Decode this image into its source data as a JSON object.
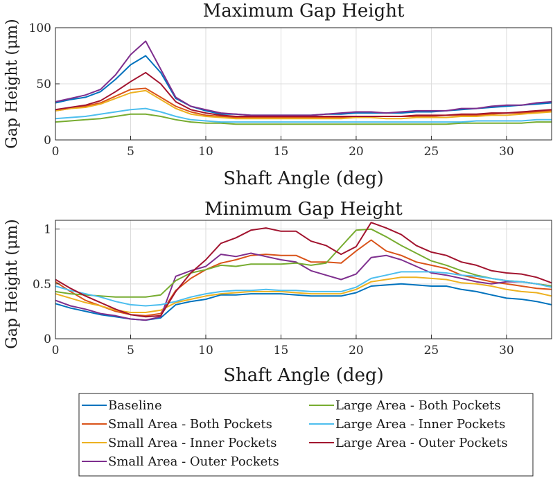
{
  "chart_data": [
    {
      "type": "line",
      "title": "Maximum Gap Height",
      "xlabel": "Shaft Angle (deg)",
      "ylabel": "Gap Height (μm)",
      "xlim": [
        0,
        33
      ],
      "ylim": [
        0,
        100
      ],
      "xticks": [
        0,
        5,
        10,
        15,
        20,
        25,
        30
      ],
      "yticks": [
        0,
        50,
        100
      ],
      "x": [
        0,
        1,
        2,
        3,
        4,
        5,
        6,
        7,
        8,
        9,
        10,
        11,
        12,
        13,
        14,
        15,
        16,
        17,
        18,
        19,
        20,
        21,
        22,
        23,
        24,
        25,
        26,
        27,
        28,
        29,
        30,
        31,
        32,
        33
      ],
      "series": [
        {
          "name": "Baseline",
          "values": [
            33,
            36,
            38,
            43,
            54,
            67,
            75,
            60,
            37,
            30,
            26,
            23,
            23,
            22,
            22,
            22,
            22,
            22,
            23,
            23,
            24,
            24,
            24,
            24,
            25,
            25,
            26,
            27,
            28,
            29,
            30,
            31,
            32,
            33
          ]
        },
        {
          "name": "Small Area - Both Pockets",
          "values": [
            26,
            28,
            30,
            33,
            39,
            45,
            46,
            38,
            30,
            25,
            22,
            21,
            20,
            20,
            20,
            20,
            20,
            20,
            20,
            20,
            21,
            21,
            21,
            21,
            21,
            21,
            22,
            22,
            22,
            23,
            24,
            24,
            25,
            26
          ]
        },
        {
          "name": "Small Area - Inner Pockets",
          "values": [
            26,
            28,
            29,
            32,
            37,
            42,
            44,
            36,
            28,
            23,
            21,
            20,
            19,
            19,
            19,
            19,
            19,
            19,
            19,
            19,
            20,
            20,
            19,
            19,
            20,
            20,
            20,
            21,
            21,
            22,
            22,
            23,
            24,
            25
          ]
        },
        {
          "name": "Small Area - Outer Pockets",
          "values": [
            34,
            37,
            40,
            45,
            58,
            76,
            88,
            63,
            38,
            30,
            27,
            24,
            23,
            22,
            22,
            22,
            22,
            22,
            23,
            24,
            25,
            25,
            24,
            25,
            26,
            26,
            26,
            28,
            28,
            30,
            31,
            31,
            33,
            34
          ]
        },
        {
          "name": "Large Area - Both Pockets",
          "values": [
            16,
            17,
            18,
            19,
            21,
            23,
            23,
            21,
            18,
            16,
            15,
            15,
            14,
            14,
            14,
            14,
            14,
            14,
            14,
            14,
            14,
            14,
            14,
            14,
            14,
            14,
            14,
            15,
            15,
            15,
            15,
            15,
            16,
            16
          ]
        },
        {
          "name": "Large Area - Inner Pockets",
          "values": [
            19,
            20,
            21,
            23,
            25,
            27,
            28,
            25,
            21,
            18,
            17,
            16,
            16,
            16,
            16,
            16,
            16,
            16,
            16,
            16,
            16,
            16,
            16,
            16,
            16,
            16,
            16,
            16,
            17,
            17,
            17,
            17,
            18,
            18
          ]
        },
        {
          "name": "Large Area - Outer Pockets",
          "values": [
            27,
            29,
            31,
            35,
            43,
            52,
            60,
            50,
            34,
            27,
            24,
            22,
            21,
            21,
            21,
            21,
            21,
            21,
            21,
            21,
            21,
            21,
            21,
            21,
            22,
            22,
            22,
            23,
            23,
            24,
            24,
            25,
            26,
            27
          ]
        }
      ]
    },
    {
      "type": "line",
      "title": "Minimum Gap Height",
      "xlabel": "Shaft Angle (deg)",
      "ylabel": "Gap Height (μm)",
      "xlim": [
        0,
        33
      ],
      "ylim": [
        0,
        1.08
      ],
      "xticks": [
        0,
        5,
        10,
        15,
        20,
        25,
        30
      ],
      "yticks": [
        0,
        0.5,
        1
      ],
      "x": [
        0,
        1,
        2,
        3,
        4,
        5,
        6,
        7,
        8,
        9,
        10,
        11,
        12,
        13,
        14,
        15,
        16,
        17,
        18,
        19,
        20,
        21,
        22,
        23,
        24,
        25,
        26,
        27,
        28,
        29,
        30,
        31,
        32,
        33
      ],
      "series": [
        {
          "name": "Baseline",
          "values": [
            0.32,
            0.28,
            0.25,
            0.22,
            0.2,
            0.18,
            0.17,
            0.19,
            0.31,
            0.34,
            0.36,
            0.4,
            0.4,
            0.41,
            0.41,
            0.41,
            0.4,
            0.39,
            0.39,
            0.39,
            0.42,
            0.48,
            0.49,
            0.5,
            0.49,
            0.48,
            0.48,
            0.45,
            0.43,
            0.4,
            0.37,
            0.36,
            0.34,
            0.31
          ]
        },
        {
          "name": "Small Area - Both Pockets",
          "values": [
            0.52,
            0.43,
            0.35,
            0.3,
            0.25,
            0.22,
            0.21,
            0.23,
            0.44,
            0.55,
            0.63,
            0.69,
            0.72,
            0.76,
            0.77,
            0.76,
            0.76,
            0.7,
            0.7,
            0.69,
            0.8,
            0.9,
            0.8,
            0.76,
            0.7,
            0.67,
            0.64,
            0.58,
            0.55,
            0.52,
            0.5,
            0.48,
            0.46,
            0.45
          ]
        },
        {
          "name": "Small Area - Inner Pockets",
          "values": [
            0.41,
            0.37,
            0.33,
            0.3,
            0.26,
            0.24,
            0.24,
            0.26,
            0.33,
            0.36,
            0.39,
            0.41,
            0.42,
            0.43,
            0.43,
            0.43,
            0.42,
            0.41,
            0.41,
            0.41,
            0.45,
            0.52,
            0.54,
            0.56,
            0.56,
            0.55,
            0.54,
            0.51,
            0.5,
            0.48,
            0.45,
            0.43,
            0.42,
            0.39
          ]
        },
        {
          "name": "Small Area - Outer Pockets",
          "values": [
            0.35,
            0.3,
            0.27,
            0.23,
            0.21,
            0.18,
            0.17,
            0.2,
            0.57,
            0.62,
            0.66,
            0.77,
            0.75,
            0.78,
            0.75,
            0.72,
            0.7,
            0.62,
            0.58,
            0.54,
            0.59,
            0.74,
            0.76,
            0.72,
            0.66,
            0.6,
            0.58,
            0.55,
            0.52,
            0.5,
            0.52,
            0.52,
            0.5,
            0.48
          ]
        },
        {
          "name": "Large Area - Both Pockets",
          "values": [
            0.43,
            0.41,
            0.4,
            0.39,
            0.38,
            0.38,
            0.38,
            0.4,
            0.53,
            0.6,
            0.63,
            0.67,
            0.66,
            0.68,
            0.68,
            0.68,
            0.69,
            0.67,
            0.69,
            0.84,
            0.99,
            1.0,
            0.93,
            0.85,
            0.78,
            0.71,
            0.67,
            0.62,
            0.58,
            0.55,
            0.53,
            0.52,
            0.5,
            0.48
          ]
        },
        {
          "name": "Large Area - Inner Pockets",
          "values": [
            0.48,
            0.44,
            0.41,
            0.38,
            0.34,
            0.31,
            0.3,
            0.31,
            0.34,
            0.38,
            0.41,
            0.43,
            0.44,
            0.44,
            0.45,
            0.44,
            0.44,
            0.43,
            0.43,
            0.43,
            0.47,
            0.55,
            0.58,
            0.61,
            0.61,
            0.61,
            0.6,
            0.58,
            0.57,
            0.55,
            0.53,
            0.52,
            0.5,
            0.47
          ]
        },
        {
          "name": "Large Area - Outer Pockets",
          "values": [
            0.54,
            0.46,
            0.39,
            0.33,
            0.27,
            0.22,
            0.2,
            0.21,
            0.43,
            0.6,
            0.72,
            0.87,
            0.92,
            0.99,
            1.01,
            0.98,
            0.98,
            0.89,
            0.85,
            0.77,
            0.84,
            1.06,
            1.01,
            0.95,
            0.85,
            0.79,
            0.76,
            0.7,
            0.67,
            0.62,
            0.6,
            0.59,
            0.56,
            0.51
          ]
        }
      ]
    }
  ],
  "colors": {
    "Baseline": "#0072BD",
    "Small Area - Both Pockets": "#D95319",
    "Small Area - Inner Pockets": "#EDB120",
    "Small Area - Outer Pockets": "#7E2F8E",
    "Large Area - Both Pockets": "#77AC30",
    "Large Area - Inner Pockets": "#4DBEEE",
    "Large Area - Outer Pockets": "#A2142F"
  },
  "legend": {
    "placement": "bottom",
    "entries": [
      "Baseline",
      "Small Area - Both Pockets",
      "Small Area - Inner Pockets",
      "Small Area - Outer Pockets",
      "Large Area - Both Pockets",
      "Large Area - Inner Pockets",
      "Large Area - Outer Pockets"
    ]
  }
}
